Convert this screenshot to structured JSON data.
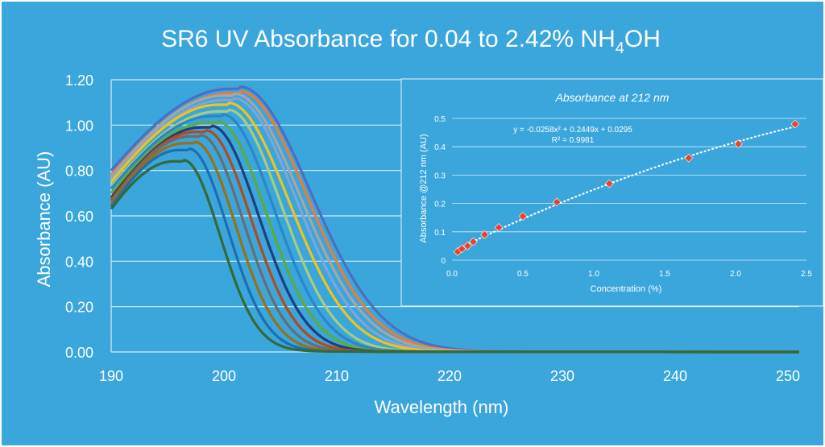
{
  "chart_data": [
    {
      "type": "line",
      "title": "SR6 UV Absorbance for 0.04 to 2.42% NH",
      "title_sub": "4",
      "title_tail": "OH",
      "xlabel": "Wavelength (nm)",
      "ylabel": "Absorbance (AU)",
      "xlim": [
        190,
        251
      ],
      "ylim": [
        0,
        1.2
      ],
      "xticks": [
        190,
        200,
        210,
        220,
        230,
        240,
        250
      ],
      "xtick_labels": [
        "190",
        "200",
        "210",
        "220",
        "230",
        "240",
        "250"
      ],
      "yticks": [
        0,
        0.2,
        0.4,
        0.6,
        0.8,
        1.0,
        1.2
      ],
      "ytick_labels": [
        "0.00",
        "0.20",
        "0.40",
        "0.60",
        "0.80",
        "1.00",
        "1.20"
      ],
      "grid": "horizontal",
      "series": [
        {
          "peak_wavelength": 195.5,
          "peak_abs": 0.84,
          "abs_190": 0.63,
          "half_wavelength": 201.8,
          "color": "#35693a"
        },
        {
          "peak_wavelength": 196.0,
          "peak_abs": 0.89,
          "abs_190": 0.64,
          "half_wavelength": 202.6,
          "color": "#1d6fb0"
        },
        {
          "peak_wavelength": 196.5,
          "peak_abs": 0.92,
          "abs_190": 0.65,
          "half_wavelength": 203.4,
          "color": "#9c6f12"
        },
        {
          "peak_wavelength": 197.0,
          "peak_abs": 0.95,
          "abs_190": 0.66,
          "half_wavelength": 204.2,
          "color": "#6c6c6c"
        },
        {
          "peak_wavelength": 197.5,
          "peak_abs": 0.97,
          "abs_190": 0.67,
          "half_wavelength": 205.0,
          "color": "#b54a1a"
        },
        {
          "peak_wavelength": 198.0,
          "peak_abs": 0.99,
          "abs_190": 0.68,
          "half_wavelength": 205.8,
          "color": "#223d7a"
        },
        {
          "peak_wavelength": 198.5,
          "peak_abs": 1.01,
          "abs_190": 0.7,
          "half_wavelength": 206.6,
          "color": "#5eaa3c"
        },
        {
          "peak_wavelength": 199.0,
          "peak_abs": 1.04,
          "abs_190": 0.72,
          "half_wavelength": 207.4,
          "color": "#2b86c8"
        },
        {
          "peak_wavelength": 199.5,
          "peak_abs": 1.06,
          "abs_190": 0.73,
          "half_wavelength": 208.2,
          "color": "#a8cc7a"
        },
        {
          "peak_wavelength": 199.5,
          "peak_abs": 1.09,
          "abs_190": 0.75,
          "half_wavelength": 209.3,
          "color": "#f2c21b"
        },
        {
          "peak_wavelength": 200.0,
          "peak_abs": 1.11,
          "abs_190": 0.76,
          "half_wavelength": 210.0,
          "color": "#7ea6d8"
        },
        {
          "peak_wavelength": 200.0,
          "peak_abs": 1.13,
          "abs_190": 0.77,
          "half_wavelength": 210.6,
          "color": "#a6a6a6"
        },
        {
          "peak_wavelength": 200.5,
          "peak_abs": 1.14,
          "abs_190": 0.78,
          "half_wavelength": 211.2,
          "color": "#e57e3a"
        },
        {
          "peak_wavelength": 200.5,
          "peak_abs": 1.16,
          "abs_190": 0.8,
          "half_wavelength": 211.8,
          "color": "#4a6fc4"
        }
      ]
    },
    {
      "type": "scatter",
      "title": "Absorbance at 212 nm",
      "xlabel": "Concentration (%)",
      "ylabel": "Absorbance @212 nm (AU)",
      "xlim": [
        0,
        2.5
      ],
      "ylim": [
        0,
        0.5
      ],
      "xticks": [
        0,
        0.5,
        1.0,
        1.5,
        2.0,
        2.5
      ],
      "xtick_labels": [
        "0.0",
        "0.5",
        "1.0",
        "1.5",
        "2.0",
        "2.5"
      ],
      "yticks": [
        0,
        0.1,
        0.2,
        0.3,
        0.4,
        0.5
      ],
      "ytick_labels": [
        "0",
        "0.1",
        "0.2",
        "0.3",
        "0.4",
        "0.5"
      ],
      "grid": "horizontal",
      "points": [
        {
          "x": 0.04,
          "y": 0.03
        },
        {
          "x": 0.07,
          "y": 0.04
        },
        {
          "x": 0.11,
          "y": 0.05
        },
        {
          "x": 0.15,
          "y": 0.065
        },
        {
          "x": 0.23,
          "y": 0.09
        },
        {
          "x": 0.33,
          "y": 0.115
        },
        {
          "x": 0.5,
          "y": 0.155
        },
        {
          "x": 0.74,
          "y": 0.205
        },
        {
          "x": 1.11,
          "y": 0.27
        },
        {
          "x": 1.67,
          "y": 0.36
        },
        {
          "x": 2.02,
          "y": 0.41
        },
        {
          "x": 2.42,
          "y": 0.48
        }
      ],
      "trendline": {
        "a": -0.0258,
        "b": 0.2449,
        "c": 0.0295,
        "style": "dotted"
      },
      "equation": "y = -0.0258x² + 0.2449x + 0.0295",
      "r_squared": "R² = 0.9981",
      "marker_color": "#e8432c"
    }
  ]
}
